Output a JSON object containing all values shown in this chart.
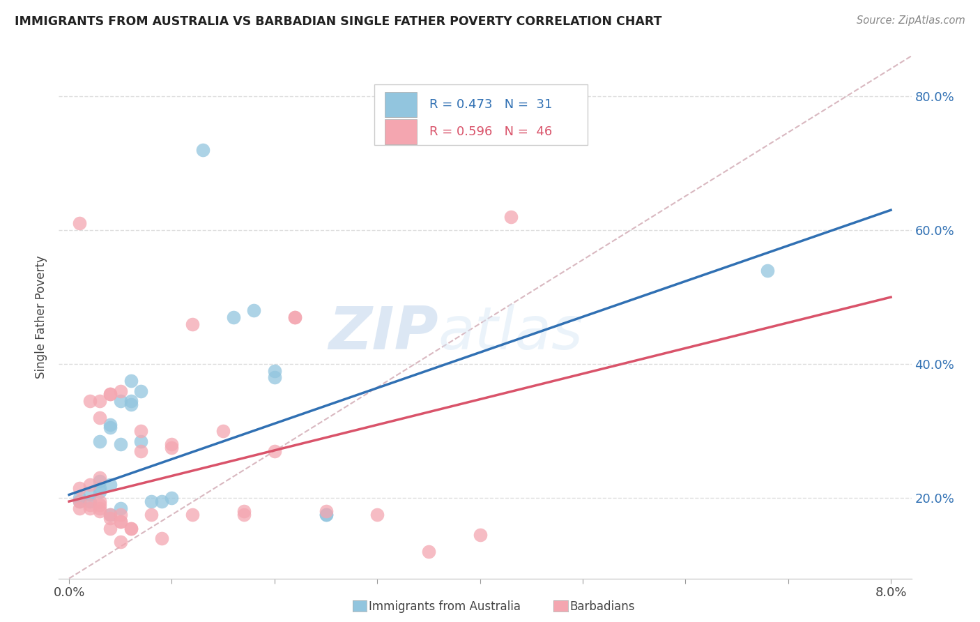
{
  "title": "IMMIGRANTS FROM AUSTRALIA VS BARBADIAN SINGLE FATHER POVERTY CORRELATION CHART",
  "source": "Source: ZipAtlas.com",
  "ylabel": "Single Father Poverty",
  "y_ticks": [
    0.2,
    0.4,
    0.6,
    0.8
  ],
  "y_tick_labels": [
    "20.0%",
    "40.0%",
    "60.0%",
    "80.0%"
  ],
  "x_ticks": [
    0.0,
    0.01,
    0.02,
    0.03,
    0.04,
    0.05,
    0.06,
    0.07,
    0.08
  ],
  "xlim": [
    -0.001,
    0.082
  ],
  "ylim": [
    0.08,
    0.86
  ],
  "watermark_text": "ZIP",
  "watermark_text2": "atlas",
  "legend_blue_label": "Immigrants from Australia",
  "legend_pink_label": "Barbadians",
  "R_blue": "0.473",
  "N_blue": "31",
  "R_pink": "0.596",
  "N_pink": "46",
  "blue_color": "#92c5de",
  "pink_color": "#f4a6b0",
  "blue_line_color": "#3070b3",
  "pink_line_color": "#d9536a",
  "diag_line_color": "#d9b8c0",
  "blue_scatter": [
    [
      0.001,
      0.195
    ],
    [
      0.001,
      0.2
    ],
    [
      0.002,
      0.195
    ],
    [
      0.002,
      0.205
    ],
    [
      0.003,
      0.21
    ],
    [
      0.003,
      0.225
    ],
    [
      0.003,
      0.215
    ],
    [
      0.003,
      0.285
    ],
    [
      0.004,
      0.22
    ],
    [
      0.004,
      0.31
    ],
    [
      0.004,
      0.305
    ],
    [
      0.004,
      0.175
    ],
    [
      0.005,
      0.28
    ],
    [
      0.005,
      0.345
    ],
    [
      0.005,
      0.185
    ],
    [
      0.006,
      0.345
    ],
    [
      0.006,
      0.375
    ],
    [
      0.006,
      0.34
    ],
    [
      0.007,
      0.36
    ],
    [
      0.007,
      0.285
    ],
    [
      0.008,
      0.195
    ],
    [
      0.009,
      0.195
    ],
    [
      0.01,
      0.2
    ],
    [
      0.013,
      0.72
    ],
    [
      0.016,
      0.47
    ],
    [
      0.018,
      0.48
    ],
    [
      0.02,
      0.38
    ],
    [
      0.02,
      0.39
    ],
    [
      0.025,
      0.175
    ],
    [
      0.025,
      0.175
    ],
    [
      0.068,
      0.54
    ]
  ],
  "pink_scatter": [
    [
      0.001,
      0.185
    ],
    [
      0.001,
      0.195
    ],
    [
      0.001,
      0.215
    ],
    [
      0.001,
      0.61
    ],
    [
      0.002,
      0.185
    ],
    [
      0.002,
      0.19
    ],
    [
      0.002,
      0.22
    ],
    [
      0.002,
      0.345
    ],
    [
      0.003,
      0.18
    ],
    [
      0.003,
      0.185
    ],
    [
      0.003,
      0.19
    ],
    [
      0.003,
      0.195
    ],
    [
      0.003,
      0.23
    ],
    [
      0.003,
      0.32
    ],
    [
      0.003,
      0.345
    ],
    [
      0.004,
      0.155
    ],
    [
      0.004,
      0.17
    ],
    [
      0.004,
      0.175
    ],
    [
      0.004,
      0.355
    ],
    [
      0.004,
      0.355
    ],
    [
      0.005,
      0.135
    ],
    [
      0.005,
      0.165
    ],
    [
      0.005,
      0.165
    ],
    [
      0.005,
      0.175
    ],
    [
      0.005,
      0.36
    ],
    [
      0.006,
      0.155
    ],
    [
      0.006,
      0.155
    ],
    [
      0.007,
      0.27
    ],
    [
      0.007,
      0.3
    ],
    [
      0.008,
      0.175
    ],
    [
      0.009,
      0.14
    ],
    [
      0.01,
      0.275
    ],
    [
      0.01,
      0.28
    ],
    [
      0.012,
      0.175
    ],
    [
      0.012,
      0.46
    ],
    [
      0.015,
      0.3
    ],
    [
      0.017,
      0.175
    ],
    [
      0.017,
      0.18
    ],
    [
      0.02,
      0.27
    ],
    [
      0.022,
      0.47
    ],
    [
      0.022,
      0.47
    ],
    [
      0.025,
      0.18
    ],
    [
      0.03,
      0.175
    ],
    [
      0.035,
      0.12
    ],
    [
      0.04,
      0.145
    ],
    [
      0.043,
      0.62
    ]
  ],
  "blue_line_pts": [
    [
      0.0,
      0.205
    ],
    [
      0.08,
      0.63
    ]
  ],
  "pink_line_pts": [
    [
      0.0,
      0.195
    ],
    [
      0.08,
      0.5
    ]
  ]
}
